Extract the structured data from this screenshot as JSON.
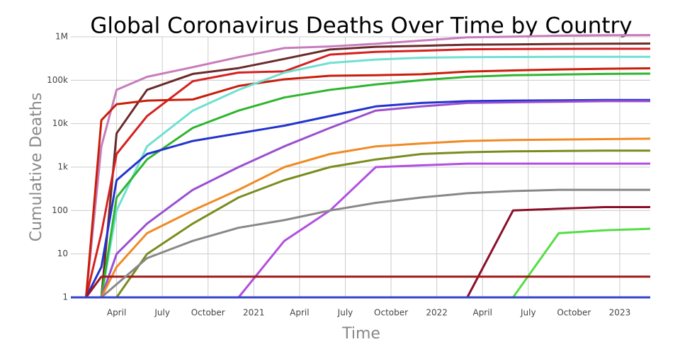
{
  "chart_data": {
    "type": "line",
    "title": "Global Coronavirus Deaths Over Time by Country",
    "x_label": "Time",
    "y_label": "Cumulative Deaths",
    "log_y": true,
    "grid": true,
    "xlim": [
      "2020-01",
      "2023-03"
    ],
    "xticks": [
      {
        "value": "2020-04",
        "label": "April"
      },
      {
        "value": "2020-07",
        "label": "July"
      },
      {
        "value": "2020-10",
        "label": "October"
      },
      {
        "value": "2021-01",
        "label": "2021"
      },
      {
        "value": "2021-04",
        "label": "April"
      },
      {
        "value": "2021-07",
        "label": "July"
      },
      {
        "value": "2021-10",
        "label": "October"
      },
      {
        "value": "2022-01",
        "label": "2022"
      },
      {
        "value": "2022-04",
        "label": "April"
      },
      {
        "value": "2022-07",
        "label": "July"
      },
      {
        "value": "2022-10",
        "label": "October"
      },
      {
        "value": "2023-01",
        "label": "2023"
      }
    ],
    "ylim": [
      1,
      1000000
    ],
    "yticks": [
      1,
      10,
      100,
      {
        "value": 1000,
        "label": "1k"
      },
      {
        "value": 10000,
        "label": "10k"
      },
      {
        "value": 100000,
        "label": "100k"
      },
      {
        "value": 1000000,
        "label": "1M"
      }
    ],
    "x": [
      "2020-01",
      "2020-02",
      "2020-03",
      "2020-04",
      "2020-06",
      "2020-09",
      "2020-12",
      "2021-03",
      "2021-06",
      "2021-09",
      "2021-12",
      "2022-03",
      "2022-06",
      "2022-09",
      "2022-12",
      "2023-03"
    ],
    "series": [
      {
        "color": "#c77cbd",
        "values": [
          1,
          1,
          3000,
          60000,
          120000,
          200000,
          340000,
          550000,
          600000,
          690000,
          820000,
          970000,
          1010000,
          1060000,
          1090000,
          1100000
        ]
      },
      {
        "color": "#6b2a2a",
        "values": [
          1,
          1,
          1,
          6000,
          60000,
          140000,
          190000,
          310000,
          510000,
          590000,
          620000,
          660000,
          670000,
          685000,
          693000,
          700000
        ]
      },
      {
        "color": "#d62020",
        "values": [
          1,
          1,
          30,
          2000,
          15000,
          95000,
          150000,
          160000,
          390000,
          450000,
          480000,
          516000,
          525000,
          529000,
          530000,
          531000
        ]
      },
      {
        "color": "#c81e0a",
        "values": [
          1,
          1,
          12000,
          28000,
          34000,
          36000,
          74000,
          105000,
          127000,
          130000,
          137000,
          158000,
          168000,
          177000,
          184000,
          188000
        ]
      },
      {
        "color": "#6fe0d0",
        "values": [
          1,
          1,
          1,
          100,
          3000,
          20000,
          60000,
          150000,
          250000,
          300000,
          330000,
          340000,
          343000,
          345000,
          345000,
          346000
        ]
      },
      {
        "color": "#2fb52f",
        "values": [
          1,
          1,
          1,
          200,
          1500,
          8000,
          20000,
          40000,
          60000,
          80000,
          100000,
          120000,
          130000,
          135000,
          140000,
          142000
        ]
      },
      {
        "color": "#2233cc",
        "values": [
          1,
          1,
          5,
          500,
          2000,
          4000,
          6000,
          9000,
          15000,
          25000,
          30000,
          33000,
          34000,
          34500,
          35000,
          35000
        ]
      },
      {
        "color": "#9b4fd0",
        "values": [
          1,
          1,
          1,
          10,
          50,
          300,
          1000,
          3000,
          8000,
          20000,
          25000,
          30000,
          31000,
          32000,
          33000,
          33000
        ]
      },
      {
        "color": "#f08a24",
        "values": [
          1,
          1,
          1,
          5,
          30,
          100,
          300,
          1000,
          2000,
          3000,
          3500,
          4000,
          4200,
          4300,
          4400,
          4500
        ]
      },
      {
        "color": "#7a8c1e",
        "values": [
          1,
          1,
          1,
          1,
          10,
          50,
          200,
          500,
          1000,
          1500,
          2000,
          2200,
          2300,
          2350,
          2400,
          2400
        ]
      },
      {
        "color": "#b24fe0",
        "values": [
          1,
          1,
          1,
          1,
          1,
          1,
          1,
          20,
          100,
          1000,
          1100,
          1200,
          1200,
          1200,
          1200,
          1200
        ]
      },
      {
        "color": "#8a0f2a",
        "values": [
          1,
          1,
          1,
          1,
          1,
          1,
          1,
          1,
          1,
          1,
          1,
          1,
          100,
          110,
          120,
          120
        ]
      },
      {
        "color": "#55dd44",
        "values": [
          1,
          1,
          1,
          1,
          1,
          1,
          1,
          1,
          1,
          1,
          1,
          1,
          1,
          30,
          35,
          38
        ]
      },
      {
        "color": "#a01818",
        "values": [
          1,
          1,
          3,
          3,
          3,
          3,
          3,
          3,
          3,
          3,
          3,
          3,
          3,
          3,
          3,
          3
        ]
      },
      {
        "color": "#888888",
        "values": [
          1,
          1,
          1,
          2,
          8,
          20,
          40,
          60,
          100,
          150,
          200,
          250,
          280,
          300,
          300,
          300
        ]
      },
      {
        "color": "#3344cc",
        "values": [
          1,
          1,
          1,
          1,
          1,
          1,
          1,
          1,
          1,
          1,
          1,
          1,
          1,
          1,
          1,
          1
        ]
      }
    ]
  }
}
